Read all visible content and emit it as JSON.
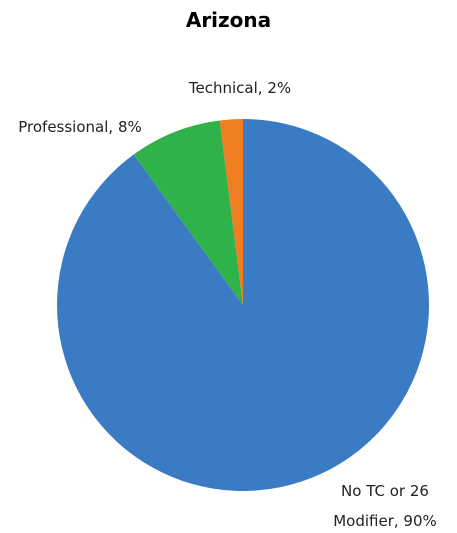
{
  "chart_data": {
    "type": "pie",
    "title": "Arizona",
    "categories": [
      "No TC or 26 Modifier",
      "Professional",
      "Technical"
    ],
    "values": [
      90,
      8,
      2
    ],
    "value_labels": [
      "90%",
      "8%",
      "2%"
    ],
    "colors": [
      "#3a7bc4",
      "#2fb24a",
      "#ef7d22"
    ]
  }
}
